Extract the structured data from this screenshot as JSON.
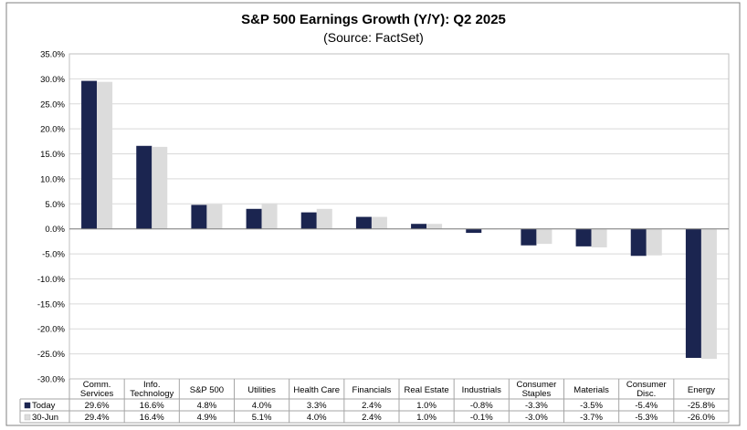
{
  "chart_data": {
    "type": "bar",
    "title": "S&P 500 Earnings Growth (Y/Y): Q2 2025",
    "subtitle": "(Source: FactSet)",
    "categories": [
      [
        "Comm.",
        "Services"
      ],
      [
        "Info.",
        "Technology"
      ],
      [
        "S&P 500"
      ],
      [
        "Utilities"
      ],
      [
        "Health Care"
      ],
      [
        "Financials"
      ],
      [
        "Real Estate"
      ],
      [
        "Industrials"
      ],
      [
        "Consumer",
        "Staples"
      ],
      [
        "Materials"
      ],
      [
        "Consumer",
        "Disc."
      ],
      [
        "Energy"
      ]
    ],
    "series": [
      {
        "name": "Today",
        "color": "#1b2550",
        "values": [
          29.6,
          16.6,
          4.8,
          4.0,
          3.3,
          2.4,
          1.0,
          -0.8,
          -3.3,
          -3.5,
          -5.4,
          -25.8
        ],
        "labels": [
          "29.6%",
          "16.6%",
          "4.8%",
          "4.0%",
          "3.3%",
          "2.4%",
          "1.0%",
          "-0.8%",
          "-3.3%",
          "-3.5%",
          "-5.4%",
          "-25.8%"
        ]
      },
      {
        "name": "30-Jun",
        "color": "#dcdcdc",
        "values": [
          29.4,
          16.4,
          4.9,
          5.1,
          4.0,
          2.4,
          1.0,
          -0.1,
          -3.0,
          -3.7,
          -5.3,
          -26.0
        ],
        "labels": [
          "29.4%",
          "16.4%",
          "4.9%",
          "5.1%",
          "4.0%",
          "2.4%",
          "1.0%",
          "-0.1%",
          "-3.0%",
          "-3.7%",
          "-5.3%",
          "-26.0%"
        ]
      }
    ],
    "ylim": [
      -30,
      35
    ],
    "yticks": [
      35,
      30,
      25,
      20,
      15,
      10,
      5,
      0,
      -5,
      -10,
      -15,
      -20,
      -25,
      -30
    ],
    "ytick_labels": [
      "35.0%",
      "30.0%",
      "25.0%",
      "20.0%",
      "15.0%",
      "10.0%",
      "5.0%",
      "0.0%",
      "-5.0%",
      "-10.0%",
      "-15.0%",
      "-20.0%",
      "-25.0%",
      "-30.0%"
    ],
    "grid": true,
    "legend": "data-table-bottom"
  }
}
